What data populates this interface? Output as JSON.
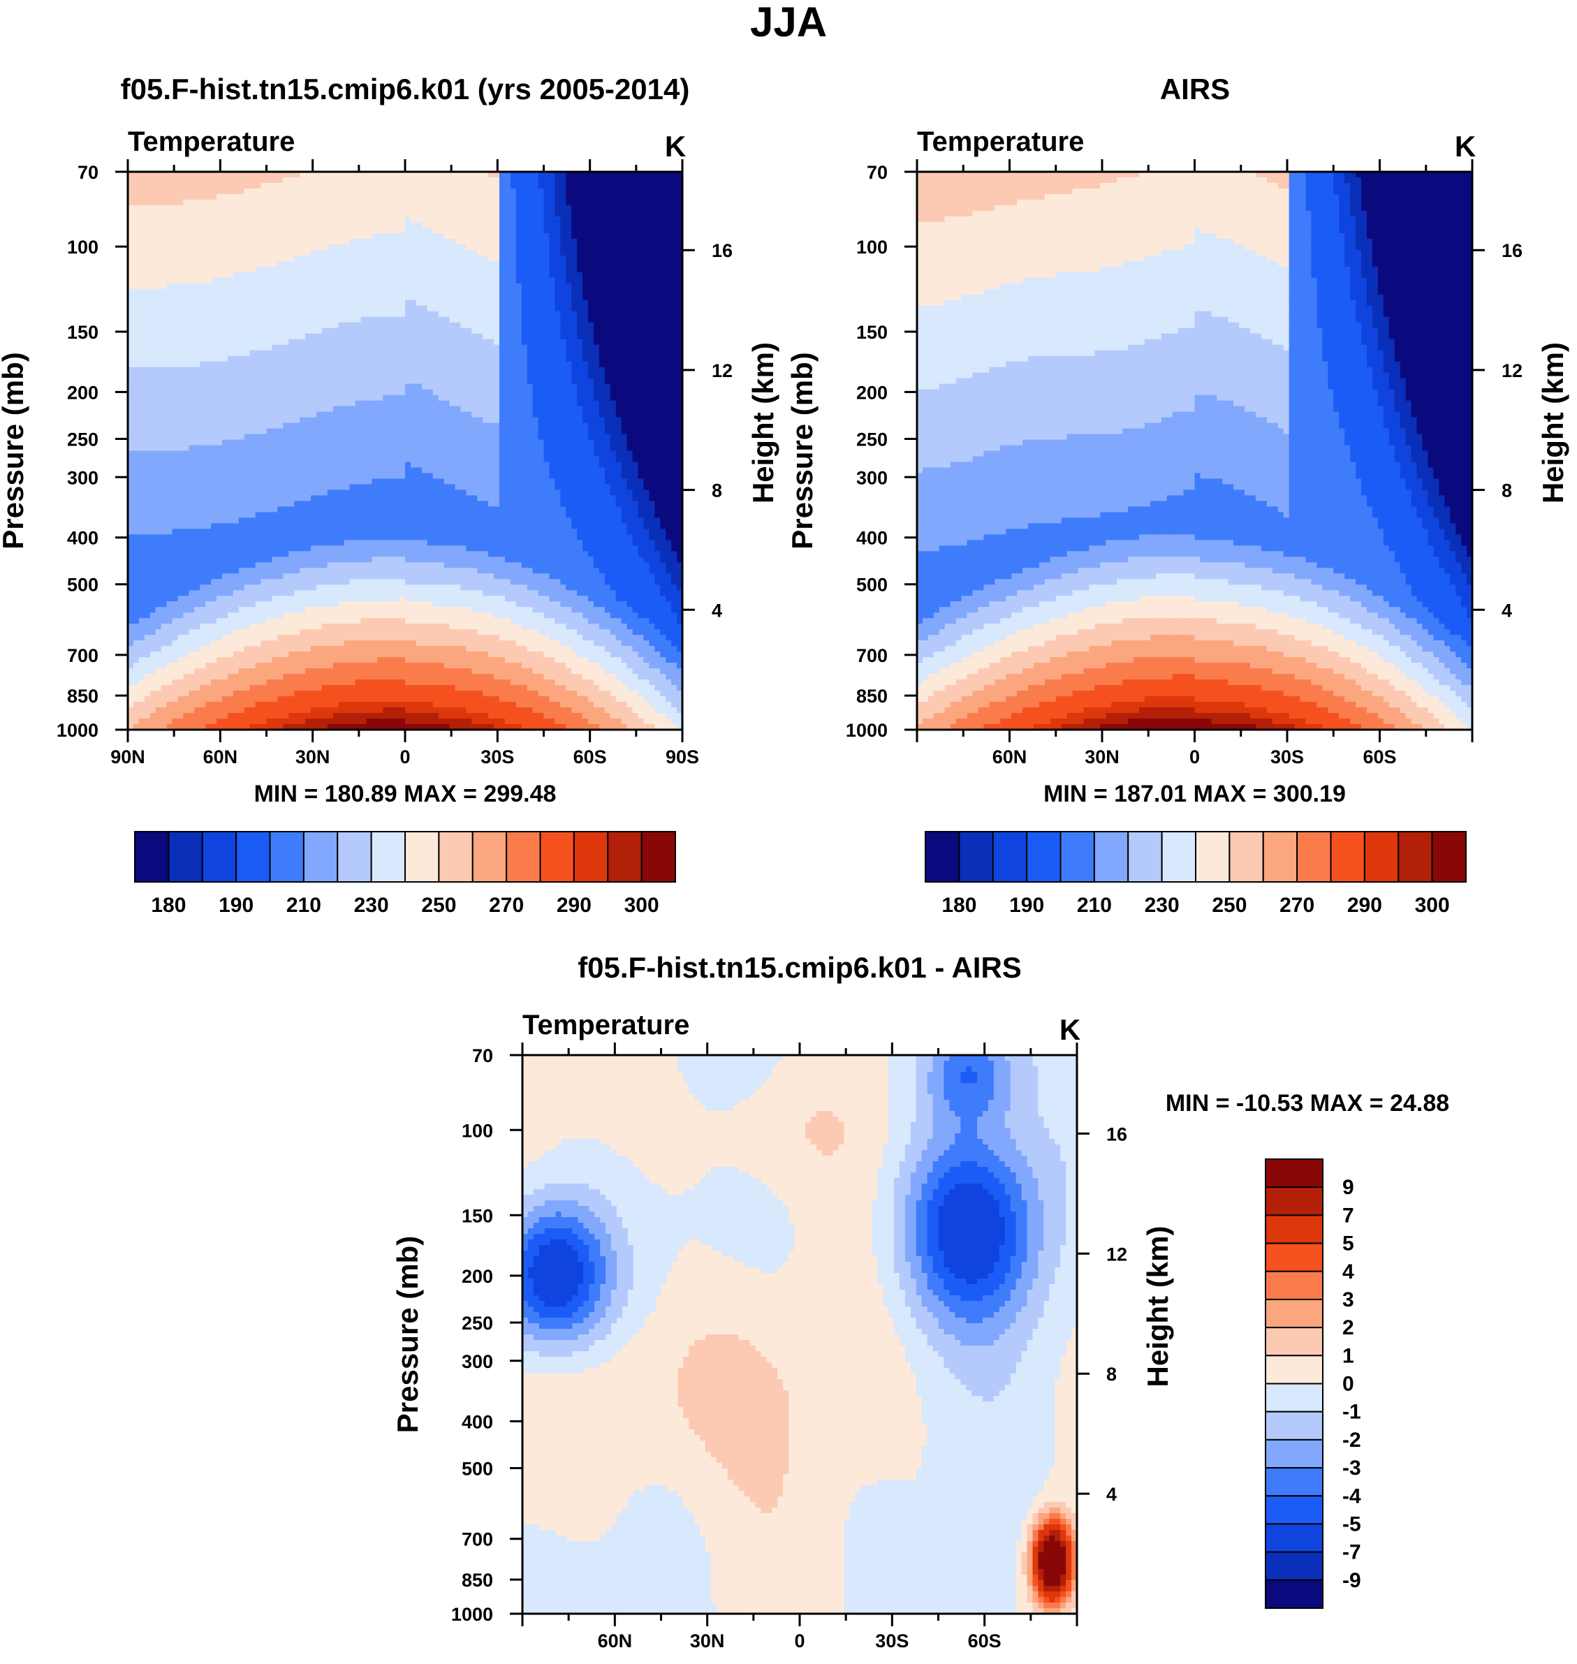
{
  "figure": {
    "title": "JJA"
  },
  "colors": {
    "abs_palette": [
      "#0a0a7e",
      "#0a2fb8",
      "#0f45de",
      "#1c5cf6",
      "#3f7cfb",
      "#82a8fd",
      "#b4cafd",
      "#d8e8fd",
      "#fde9da",
      "#fccab2",
      "#fba67f",
      "#fa7c4d",
      "#f5511f",
      "#de370c",
      "#b32009",
      "#8a0707"
    ],
    "diff_palette": [
      "#0a0a7e",
      "#0a2fb8",
      "#0f45de",
      "#1c5cf6",
      "#3f7cfb",
      "#82a8fd",
      "#b4cafd",
      "#d8e8fd",
      "#fde9da",
      "#fccab2",
      "#fba67f",
      "#fa7c4d",
      "#f5511f",
      "#de370c",
      "#b32009",
      "#8a0707"
    ]
  },
  "chart_data": [
    {
      "type": "heatmap",
      "title": "f05.F-hist.tn15.cmip6.k01 (yrs 2005-2014)",
      "left_label": "Temperature",
      "units": "K",
      "ylabel": "Pressure (mb)",
      "y2label": "Height (km)",
      "y_scale": "log",
      "ylim": [
        1000,
        70
      ],
      "y_ticks": [
        70,
        100,
        150,
        200,
        250,
        300,
        400,
        500,
        700,
        850,
        1000
      ],
      "y2_ticks": [
        4,
        8,
        12,
        16
      ],
      "x_ticks": [
        "90N",
        "60N",
        "30N",
        "0",
        "30S",
        "60S",
        "90S"
      ],
      "min_max": "MIN = 180.89  MAX = 299.48",
      "colorbar_labels": [
        "180",
        "190",
        "210",
        "230",
        "250",
        "270",
        "290",
        "300"
      ],
      "grid": false
    },
    {
      "type": "heatmap",
      "title": "AIRS",
      "left_label": "Temperature",
      "units": "K",
      "ylabel": "Pressure (mb)",
      "y2label": "Height (km)",
      "y_scale": "log",
      "ylim": [
        1000,
        70
      ],
      "y_ticks": [
        70,
        100,
        150,
        200,
        250,
        300,
        400,
        500,
        700,
        850,
        1000
      ],
      "y2_ticks": [
        4,
        8,
        12,
        16
      ],
      "x_ticks": [
        "60N",
        "30N",
        "0",
        "30S",
        "60S"
      ],
      "min_max": "MIN = 187.01   MAX = 300.19",
      "colorbar_labels": [
        "180",
        "190",
        "210",
        "230",
        "250",
        "270",
        "290",
        "300"
      ],
      "grid": false
    },
    {
      "type": "heatmap",
      "title": "f05.F-hist.tn15.cmip6.k01 - AIRS",
      "left_label": "Temperature",
      "units": "K",
      "ylabel": "Pressure (mb)",
      "y2label": "Height (km)",
      "y_scale": "log",
      "ylim": [
        1000,
        70
      ],
      "y_ticks": [
        70,
        100,
        150,
        200,
        250,
        300,
        400,
        500,
        700,
        850,
        1000
      ],
      "y2_ticks": [
        4,
        8,
        12,
        16
      ],
      "x_ticks": [
        "60N",
        "30N",
        "0",
        "30S",
        "60S"
      ],
      "min_max": "MIN = -10.53   MAX =  24.88",
      "colorbar_labels": [
        "9",
        "7",
        "5",
        "4",
        "3",
        "2",
        "1",
        "0",
        "-1",
        "-2",
        "-3",
        "-4",
        "-5",
        "-7",
        "-9"
      ],
      "grid": false
    }
  ]
}
